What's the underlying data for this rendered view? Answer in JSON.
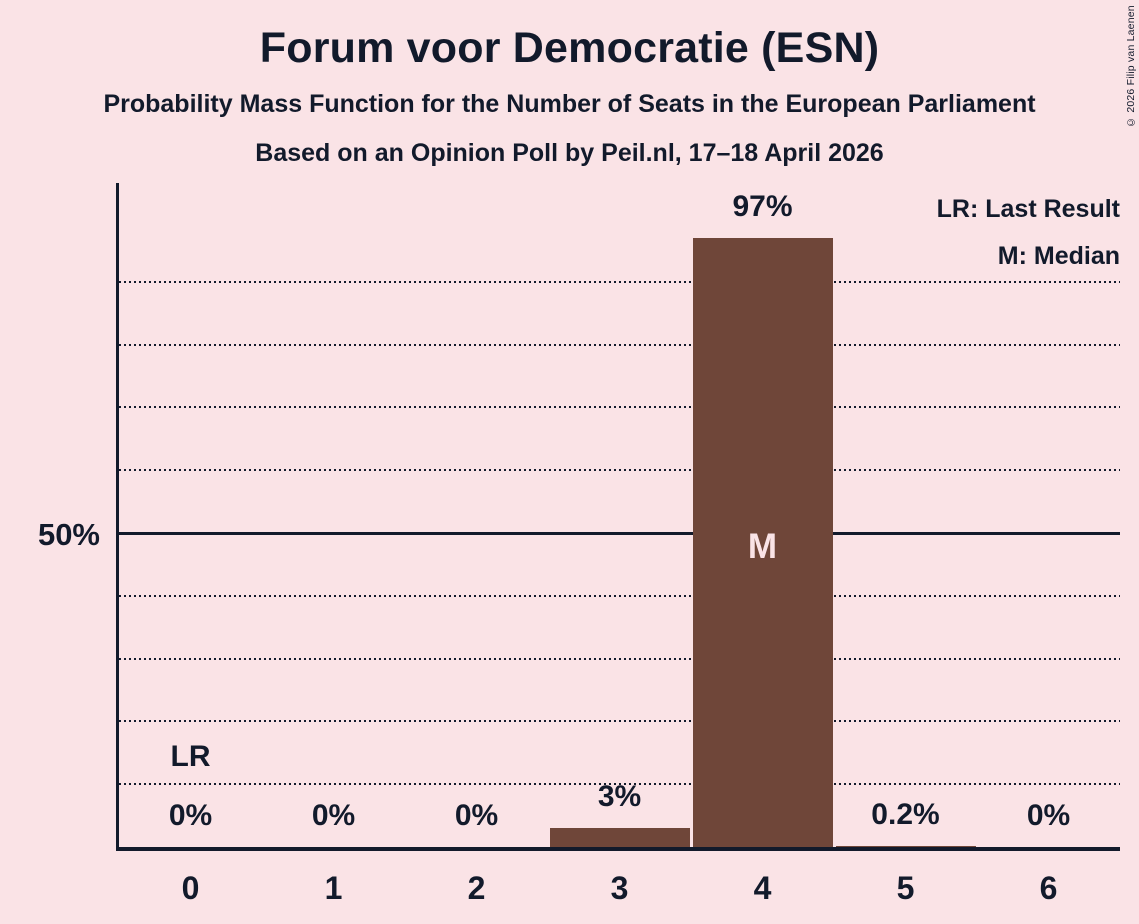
{
  "title": "Forum voor Democratie (ESN)",
  "subtitle": "Probability Mass Function for the Number of Seats in the European Parliament",
  "source": "Based on an Opinion Poll by Peil.nl, 17–18 April 2026",
  "copyright": "© 2026 Filip van Laenen",
  "legend": {
    "lr": "LR: Last Result",
    "m": "M: Median"
  },
  "colors": {
    "background": "#fae3e6",
    "bar": "#6f4639",
    "text": "#121a2b"
  },
  "chart_data": {
    "type": "bar",
    "title": "Forum voor Democratie (ESN)",
    "subtitle": "Probability Mass Function for the Number of Seats in the European Parliament",
    "source": "Based on an Opinion Poll by Peil.nl, 17–18 April 2026",
    "categories": [
      "0",
      "1",
      "2",
      "3",
      "4",
      "5",
      "6"
    ],
    "values": [
      0,
      0,
      0,
      3,
      97,
      0.2,
      0
    ],
    "bar_labels": [
      "0%",
      "0%",
      "0%",
      "3%",
      "97%",
      "0.2%",
      "0%"
    ],
    "xlabel": "",
    "ylabel": "",
    "ylim": [
      0,
      100
    ],
    "y_tick_label": "50%",
    "y_tick_value": 50,
    "dotted_gridlines_pct": [
      10,
      20,
      30,
      40,
      60,
      70,
      80,
      90
    ],
    "majority_line_pct": 50,
    "grid": "horizontal dotted",
    "legend_position": "top-right",
    "legend_entries": [
      "LR: Last Result",
      "M: Median"
    ],
    "annotations": {
      "last_result_seat": 0,
      "last_result_label": "LR",
      "median_seat": 4,
      "median_label": "M"
    }
  }
}
